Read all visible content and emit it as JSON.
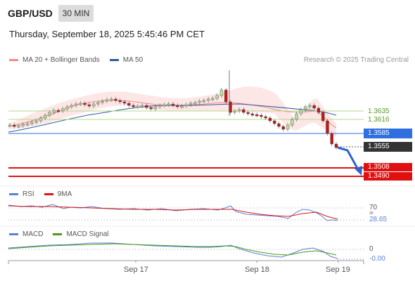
{
  "header": {
    "pair": "GBP/USD",
    "timeframe": "30 MIN",
    "datetime": "Thursday, September 18, 2025 5:45:46 PM CET"
  },
  "price_legend": {
    "ma20_label": "MA 20 + Bollinger Bands",
    "ma50_label": "MA 50",
    "credit": "Research © 2025 Trading Central"
  },
  "levels": {
    "resistance2": "1.3635",
    "resistance1": "1.3616",
    "pivot": "1.3585",
    "current": "1.3555",
    "support1": "1.3508",
    "support2": "1.3490"
  },
  "rsi_panel": {
    "rsi_label": "RSI",
    "ma_label": "9MA",
    "level_high": "70",
    "level_low": "30",
    "value": "28.65"
  },
  "macd_panel": {
    "macd_label": "MACD",
    "signal_label": "MACD Signal",
    "zero": "0",
    "value": "-0.00"
  },
  "x_axis": {
    "labels": [
      "Sep 17",
      "Sep 18",
      "Sep 19"
    ]
  },
  "colors": {
    "ma20": "#f08a8a",
    "ma50": "#2e5b9a",
    "pivot": "#2f6fe0",
    "resistance": "#7fbf4d",
    "support": "#e01010",
    "current": "#333333",
    "rsi": "#5a7fd6",
    "rsi_ma": "#d91414",
    "macd": "#5a7fd6",
    "macd_signal": "#4a9a1a",
    "candle_up": "#b8e0a0",
    "candle_down": "#c01818"
  }
}
